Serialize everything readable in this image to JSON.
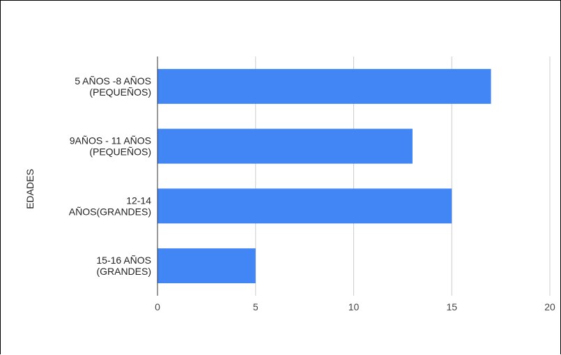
{
  "chart_data": {
    "type": "bar",
    "orientation": "horizontal",
    "title": "",
    "xlabel": "",
    "ylabel": "EDADES",
    "categories": [
      [
        "5 AÑOS -8 AÑOS",
        "(PEQUEÑOS)"
      ],
      [
        "9AÑOS - 11 AÑOS",
        "(PEQUEÑOS)"
      ],
      [
        "12-14",
        "AÑOS(GRANDES)"
      ],
      [
        "15-16 AÑOS",
        "(GRANDES)"
      ]
    ],
    "values": [
      17,
      13,
      15,
      5
    ],
    "xlim": [
      0,
      20
    ],
    "xticks": [
      0,
      5,
      10,
      15,
      20
    ],
    "grid": true,
    "legend": "none",
    "colors": {
      "bar": "#4285f4",
      "grid": "#cccccc",
      "axis": "#333333"
    }
  }
}
